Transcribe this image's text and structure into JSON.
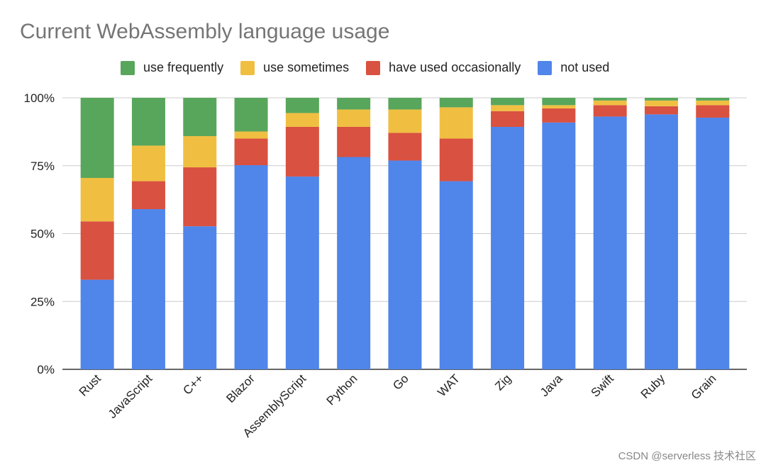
{
  "chart_data": {
    "type": "bar",
    "stacked": true,
    "normalized": true,
    "title": "Current WebAssembly language usage",
    "xlabel": "",
    "ylabel": "",
    "ylim": [
      0,
      100
    ],
    "yticks": [
      "0%",
      "25%",
      "50%",
      "75%",
      "100%"
    ],
    "grid": true,
    "legend_position": "top",
    "categories": [
      "Rust",
      "JavaScript",
      "C++",
      "Blazor",
      "AssemblyScript",
      "Python",
      "Go",
      "WAT",
      "Zig",
      "Java",
      "Swift",
      "Ruby",
      "Grain"
    ],
    "series": [
      {
        "name": "not used",
        "color": "#5085ea",
        "values": [
          33.0,
          59.0,
          52.7,
          75.2,
          71.0,
          78.2,
          76.9,
          69.3,
          89.3,
          90.9,
          93.1,
          93.9,
          92.7
        ]
      },
      {
        "name": "have used occasionally",
        "color": "#d95140",
        "values": [
          21.5,
          10.3,
          21.7,
          9.8,
          18.3,
          11.1,
          10.2,
          15.7,
          5.8,
          5.2,
          4.2,
          3.0,
          4.6
        ]
      },
      {
        "name": "use sometimes",
        "color": "#f0bf42",
        "values": [
          16.0,
          13.1,
          11.5,
          2.6,
          5.1,
          6.4,
          8.6,
          11.5,
          2.2,
          1.2,
          1.7,
          2.1,
          1.7
        ]
      },
      {
        "name": "use frequently",
        "color": "#58a65c",
        "values": [
          29.5,
          17.6,
          14.1,
          12.4,
          5.6,
          4.3,
          4.3,
          3.5,
          2.7,
          2.7,
          1.0,
          1.0,
          1.0
        ]
      }
    ]
  },
  "legend_order": [
    3,
    2,
    1,
    0
  ],
  "watermark": "CSDN @serverless 技术社区"
}
